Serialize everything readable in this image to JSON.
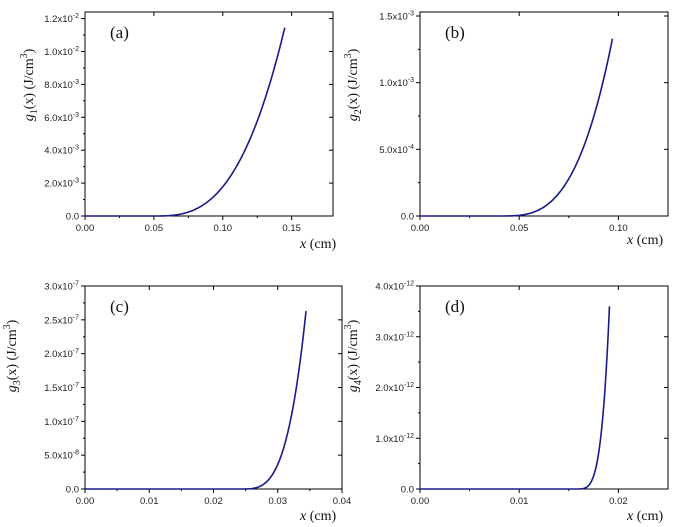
{
  "chart_data": [
    {
      "type": "line",
      "panel_label": "(a)",
      "xlabel_var": "x",
      "xlabel_unit": " (cm)",
      "ylabel_fn": "g",
      "ylabel_sub": "1",
      "ylabel_unit": "(x) (J/cm",
      "ylabel_sup": "3",
      "ylabel_close": ")",
      "xlim": [
        0,
        0.18
      ],
      "ylim": [
        0,
        0.0124
      ],
      "xticks": [
        {
          "value": 0.0,
          "label": "0.00"
        },
        {
          "value": 0.05,
          "label": "0.05"
        },
        {
          "value": 0.1,
          "label": "0.10"
        },
        {
          "value": 0.15,
          "label": "0.15"
        }
      ],
      "yticks": [
        {
          "value": 0.0,
          "label": "0.0",
          "exp": ""
        },
        {
          "value": 0.002,
          "label": "2.0x10",
          "exp": "-3"
        },
        {
          "value": 0.004,
          "label": "4.0x10",
          "exp": "-3"
        },
        {
          "value": 0.006,
          "label": "6.0x10",
          "exp": "-3"
        },
        {
          "value": 0.008,
          "label": "8.0x10",
          "exp": "-3"
        },
        {
          "value": 0.01,
          "label": "1.0x10",
          "exp": "-2"
        },
        {
          "value": 0.012,
          "label": "1.2x10",
          "exp": "-2"
        }
      ],
      "series": [
        {
          "name": "g1",
          "x_end": 0.145,
          "y_end": 0.01145,
          "x_onset": 0.05,
          "power": 2.9
        }
      ]
    },
    {
      "type": "line",
      "panel_label": "(b)",
      "xlabel_var": "x",
      "xlabel_unit": " (cm)",
      "ylabel_fn": "g",
      "ylabel_sub": "2",
      "ylabel_unit": "(x) (J/cm",
      "ylabel_sup": "3",
      "ylabel_close": ")",
      "xlim": [
        0,
        0.125
      ],
      "ylim": [
        0,
        0.00153
      ],
      "xticks": [
        {
          "value": 0.0,
          "label": "0.00"
        },
        {
          "value": 0.05,
          "label": "0.05"
        },
        {
          "value": 0.1,
          "label": "0.10"
        }
      ],
      "yticks": [
        {
          "value": 0.0,
          "label": "0.0",
          "exp": ""
        },
        {
          "value": 0.0005,
          "label": "5.0x10",
          "exp": "-4"
        },
        {
          "value": 0.001,
          "label": "1.0x10",
          "exp": "-3"
        },
        {
          "value": 0.0015,
          "label": "1.5x10",
          "exp": "-3"
        }
      ],
      "series": [
        {
          "name": "g2",
          "x_end": 0.097,
          "y_end": 0.00133,
          "x_onset": 0.04,
          "power": 3.2
        }
      ]
    },
    {
      "type": "line",
      "panel_label": "(c)",
      "xlabel_var": "x",
      "xlabel_unit": " (cm)",
      "ylabel_fn": "g",
      "ylabel_sub": "3",
      "ylabel_unit": "(x) (J/cm",
      "ylabel_sup": "3",
      "ylabel_close": ")",
      "xlim": [
        0,
        0.04
      ],
      "ylim": [
        0,
        3e-07
      ],
      "xticks": [
        {
          "value": 0.0,
          "label": "0.00"
        },
        {
          "value": 0.01,
          "label": "0.01"
        },
        {
          "value": 0.02,
          "label": "0.02"
        },
        {
          "value": 0.03,
          "label": "0.03"
        },
        {
          "value": 0.04,
          "label": "0.04"
        }
      ],
      "yticks": [
        {
          "value": 0.0,
          "label": "0.0",
          "exp": ""
        },
        {
          "value": 5e-08,
          "label": "5.0x10",
          "exp": "-8"
        },
        {
          "value": 1e-07,
          "label": "1.0x10",
          "exp": "-7"
        },
        {
          "value": 1.5e-07,
          "label": "1.5x10",
          "exp": "-7"
        },
        {
          "value": 2e-07,
          "label": "2.0x10",
          "exp": "-7"
        },
        {
          "value": 2.5e-07,
          "label": "2.5x10",
          "exp": "-7"
        },
        {
          "value": 3e-07,
          "label": "3.0x10",
          "exp": "-7"
        }
      ],
      "series": [
        {
          "name": "g3",
          "x_end": 0.0344,
          "y_end": 2.63e-07,
          "x_onset": 0.024,
          "power": 3.6
        }
      ]
    },
    {
      "type": "line",
      "panel_label": "(d)",
      "xlabel_var": "x",
      "xlabel_unit": " (cm)",
      "ylabel_fn": "g",
      "ylabel_sub": "4",
      "ylabel_unit": "(x) (J/cm",
      "ylabel_sup": "3",
      "ylabel_close": ")",
      "xlim": [
        0,
        0.025
      ],
      "ylim": [
        0,
        4e-12
      ],
      "xticks": [
        {
          "value": 0.0,
          "label": "0.00"
        },
        {
          "value": 0.01,
          "label": "0.01"
        },
        {
          "value": 0.02,
          "label": "0.02"
        }
      ],
      "yticks": [
        {
          "value": 0.0,
          "label": "0.0",
          "exp": ""
        },
        {
          "value": 1e-12,
          "label": "1.0x10",
          "exp": "-12"
        },
        {
          "value": 2e-12,
          "label": "2.0x10",
          "exp": "-12"
        },
        {
          "value": 3e-12,
          "label": "3.0x10",
          "exp": "-12"
        },
        {
          "value": 4e-12,
          "label": "4.0x10",
          "exp": "-12"
        }
      ],
      "series": [
        {
          "name": "g4",
          "x_end": 0.0191,
          "y_end": 3.6e-12,
          "x_onset": 0.0155,
          "power": 4.5
        }
      ]
    }
  ],
  "colors": {
    "curve": "#1a1a8c",
    "axis": "#000000",
    "background": "#ffffff"
  }
}
